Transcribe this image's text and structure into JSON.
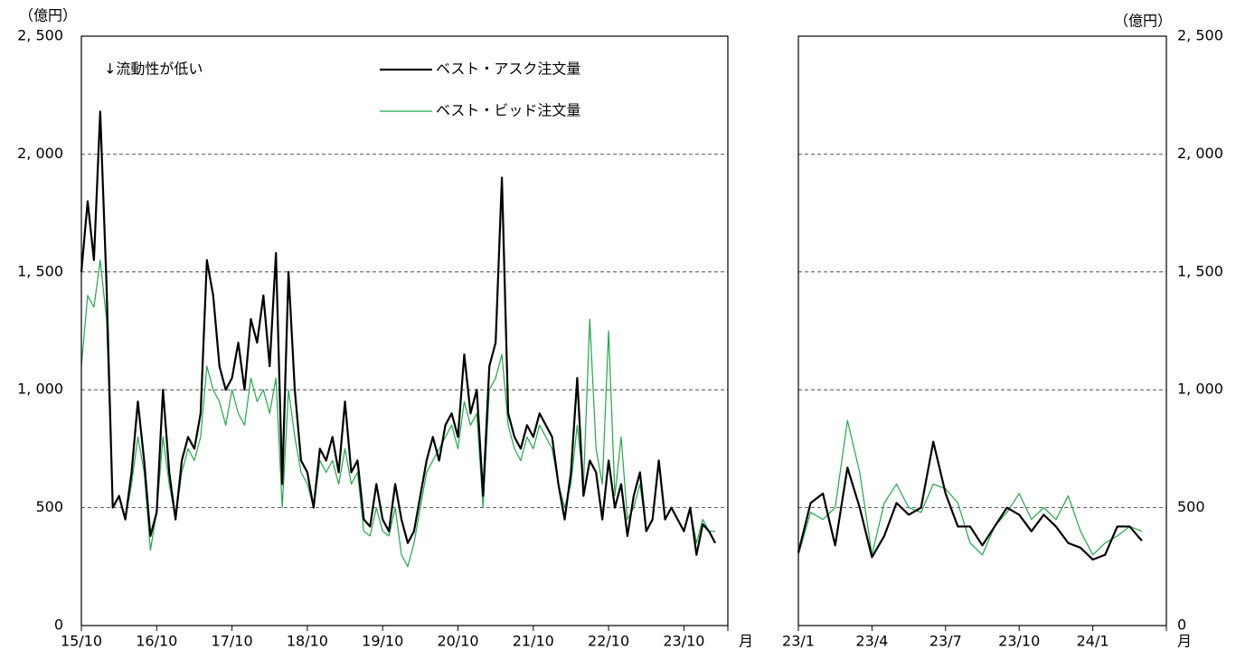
{
  "chart_data": [
    {
      "type": "line",
      "y_unit": "（億円）",
      "x_unit": "月",
      "annotation": "↓流動性が低い",
      "ylim": [
        0,
        2500
      ],
      "yticks": [
        0,
        500,
        {
          "value": 1000,
          "label": "1, 000"
        },
        {
          "value": 1500,
          "label": "1, 500"
        },
        {
          "value": 2000,
          "label": "2, 000"
        },
        {
          "value": 2500,
          "label": "2, 500"
        }
      ],
      "grid": true,
      "legend": "top",
      "x": [
        "15/10",
        null,
        null,
        null,
        null,
        null,
        null,
        null,
        null,
        null,
        null,
        null,
        "16/10",
        null,
        null,
        null,
        null,
        null,
        null,
        null,
        null,
        null,
        null,
        null,
        "17/10",
        null,
        null,
        null,
        null,
        null,
        null,
        null,
        null,
        null,
        null,
        null,
        "18/10",
        null,
        null,
        null,
        null,
        null,
        null,
        null,
        null,
        null,
        null,
        null,
        "19/10",
        null,
        null,
        null,
        null,
        null,
        null,
        null,
        null,
        null,
        null,
        null,
        "20/10",
        null,
        null,
        null,
        null,
        null,
        null,
        null,
        null,
        null,
        null,
        null,
        "21/10",
        null,
        null,
        null,
        null,
        null,
        null,
        null,
        null,
        null,
        null,
        null,
        "22/10",
        null,
        null,
        null,
        null,
        null,
        null,
        null,
        null,
        null,
        null,
        null,
        "23/10",
        null,
        null,
        null,
        null,
        null
      ],
      "series": [
        {
          "name": "ベスト・アスク注文量",
          "color": "#000000",
          "width": 2.2,
          "values": [
            1500,
            1800,
            1550,
            2180,
            1450,
            500,
            550,
            450,
            650,
            950,
            700,
            380,
            480,
            1000,
            650,
            450,
            700,
            800,
            750,
            900,
            1550,
            1400,
            1100,
            1000,
            1050,
            1200,
            1000,
            1300,
            1200,
            1400,
            1100,
            1580,
            600,
            1500,
            1000,
            700,
            650,
            500,
            750,
            700,
            800,
            650,
            950,
            650,
            700,
            450,
            420,
            600,
            450,
            400,
            600,
            450,
            350,
            400,
            550,
            700,
            800,
            700,
            850,
            900,
            800,
            1150,
            900,
            1000,
            550,
            1100,
            1200,
            1900,
            900,
            800,
            750,
            850,
            800,
            900,
            850,
            800,
            600,
            450,
            650,
            1050,
            550,
            700,
            650,
            450,
            700,
            500,
            600,
            380,
            550,
            650,
            400,
            450,
            700,
            450,
            500,
            450,
            400,
            500,
            300,
            430,
            400,
            350
          ]
        },
        {
          "name": "ベスト・ビッド注文量",
          "color": "#1fa84a",
          "width": 1.2,
          "values": [
            1100,
            1400,
            1350,
            1550,
            1300,
            500,
            550,
            450,
            600,
            800,
            650,
            320,
            480,
            800,
            600,
            450,
            650,
            750,
            700,
            800,
            1100,
            1000,
            950,
            850,
            1000,
            900,
            850,
            1050,
            950,
            1000,
            900,
            1050,
            500,
            1000,
            800,
            650,
            600,
            500,
            700,
            650,
            700,
            600,
            750,
            600,
            650,
            400,
            380,
            500,
            400,
            380,
            500,
            300,
            250,
            350,
            500,
            650,
            700,
            750,
            800,
            850,
            750,
            950,
            850,
            900,
            500,
            1000,
            1050,
            1150,
            850,
            750,
            700,
            800,
            750,
            850,
            800,
            750,
            600,
            500,
            600,
            850,
            600,
            1300,
            750,
            600,
            1250,
            550,
            800,
            450,
            500,
            600,
            400,
            450,
            700,
            450,
            500,
            450,
            400,
            500,
            350,
            450,
            400,
            400
          ]
        }
      ]
    },
    {
      "type": "line",
      "y_unit": "（億円）",
      "x_unit": "月",
      "ylim": [
        0,
        2500
      ],
      "yticks": [
        0,
        500,
        {
          "value": 1000,
          "label": "1, 000"
        },
        {
          "value": 1500,
          "label": "1, 500"
        },
        {
          "value": 2000,
          "label": "2, 000"
        },
        {
          "value": 2500,
          "label": "2, 500"
        }
      ],
      "grid": true,
      "x": [
        "23/1",
        null,
        null,
        null,
        null,
        null,
        "23/4",
        null,
        null,
        null,
        null,
        null,
        "23/7",
        null,
        null,
        null,
        null,
        null,
        "23/10",
        null,
        null,
        null,
        null,
        null,
        "24/1",
        null,
        null,
        null,
        null
      ],
      "series": [
        {
          "color": "#000000",
          "width": 2.2,
          "values": [
            310,
            520,
            560,
            340,
            670,
            500,
            290,
            380,
            520,
            470,
            500,
            780,
            560,
            420,
            420,
            340,
            420,
            500,
            470,
            400,
            470,
            420,
            350,
            330,
            280,
            300,
            420,
            420,
            360
          ]
        },
        {
          "color": "#1fa84a",
          "width": 1.2,
          "values": [
            300,
            480,
            450,
            500,
            870,
            650,
            300,
            520,
            600,
            500,
            480,
            600,
            580,
            520,
            350,
            300,
            420,
            480,
            560,
            450,
            500,
            450,
            550,
            400,
            300,
            350,
            380,
            420,
            400
          ]
        }
      ]
    }
  ]
}
